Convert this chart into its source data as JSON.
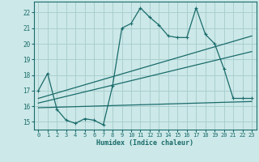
{
  "title": "",
  "xlabel": "Humidex (Indice chaleur)",
  "bg_color": "#cce8e8",
  "grid_color": "#aacfcf",
  "line_color": "#1a6b6b",
  "xlim": [
    -0.5,
    23.5
  ],
  "ylim": [
    14.5,
    22.7
  ],
  "yticks": [
    15,
    16,
    17,
    18,
    19,
    20,
    21,
    22
  ],
  "xticks": [
    0,
    1,
    2,
    3,
    4,
    5,
    6,
    7,
    8,
    9,
    10,
    11,
    12,
    13,
    14,
    15,
    16,
    17,
    18,
    19,
    20,
    21,
    22,
    23
  ],
  "series": [
    {
      "x": [
        0,
        1,
        2,
        3,
        4,
        5,
        6,
        7,
        8,
        9,
        10,
        11,
        12,
        13,
        14,
        15,
        16,
        17,
        18,
        19,
        20,
        21,
        22,
        23
      ],
      "y": [
        17.0,
        18.1,
        15.8,
        15.1,
        14.9,
        15.2,
        15.1,
        14.8,
        17.3,
        21.0,
        21.3,
        22.3,
        21.7,
        21.2,
        20.5,
        20.4,
        20.4,
        22.3,
        20.6,
        20.0,
        18.4,
        16.5,
        16.5,
        16.5
      ],
      "with_markers": true
    },
    {
      "x": [
        0,
        23
      ],
      "y": [
        15.9,
        16.3
      ],
      "with_markers": false
    },
    {
      "x": [
        0,
        23
      ],
      "y": [
        16.2,
        19.5
      ],
      "with_markers": false
    },
    {
      "x": [
        0,
        23
      ],
      "y": [
        16.5,
        20.5
      ],
      "with_markers": false
    }
  ]
}
